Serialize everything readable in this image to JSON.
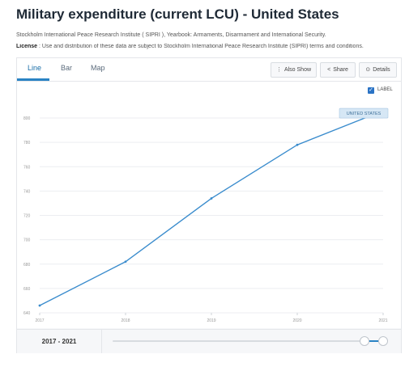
{
  "header": {
    "title": "Military expenditure (current LCU) - United States",
    "source": "Stockholm International Peace Research Institute ( SIPRI ), Yearbook: Armaments, Disarmament and International Security.",
    "license_label": "License",
    "license_text": " : Use and distribution of these data are subject to Stockholm International Peace Research Institute (SIPRI) terms and conditions."
  },
  "tabs": [
    {
      "label": "Line",
      "active": true
    },
    {
      "label": "Bar",
      "active": false
    },
    {
      "label": "Map",
      "active": false
    }
  ],
  "toolbar": {
    "also_show": "Also Show",
    "share": "Share",
    "details": "Details"
  },
  "icons": {
    "also_show": "chevron-down-icon",
    "share": "share-icon",
    "details": "details-icon",
    "checkbox": "checkbox-checked-icon"
  },
  "label_toggle": {
    "text": "LABEL",
    "checked": true
  },
  "footer": {
    "range": "2017 - 2021"
  },
  "slider": {
    "start_fraction": 0.93,
    "end_fraction": 1.0
  },
  "colors": {
    "line": "#3a8ccd",
    "accent": "#2a83c4",
    "label_bg": "#d6e7f5"
  },
  "chart_data": {
    "type": "line",
    "title": "",
    "xlabel": "",
    "ylabel": "",
    "x": [
      "2017",
      "2018",
      "2019",
      "2020",
      "2021"
    ],
    "series": [
      {
        "name": "UNITED STATES",
        "values": [
          646,
          682,
          734,
          778,
          806
        ]
      }
    ],
    "yticks": [
      "640",
      "660",
      "680",
      "700",
      "720",
      "740",
      "760",
      "780",
      "800"
    ],
    "ylim": [
      640,
      810
    ],
    "grid": true,
    "end_label": "UNITED STATES"
  }
}
